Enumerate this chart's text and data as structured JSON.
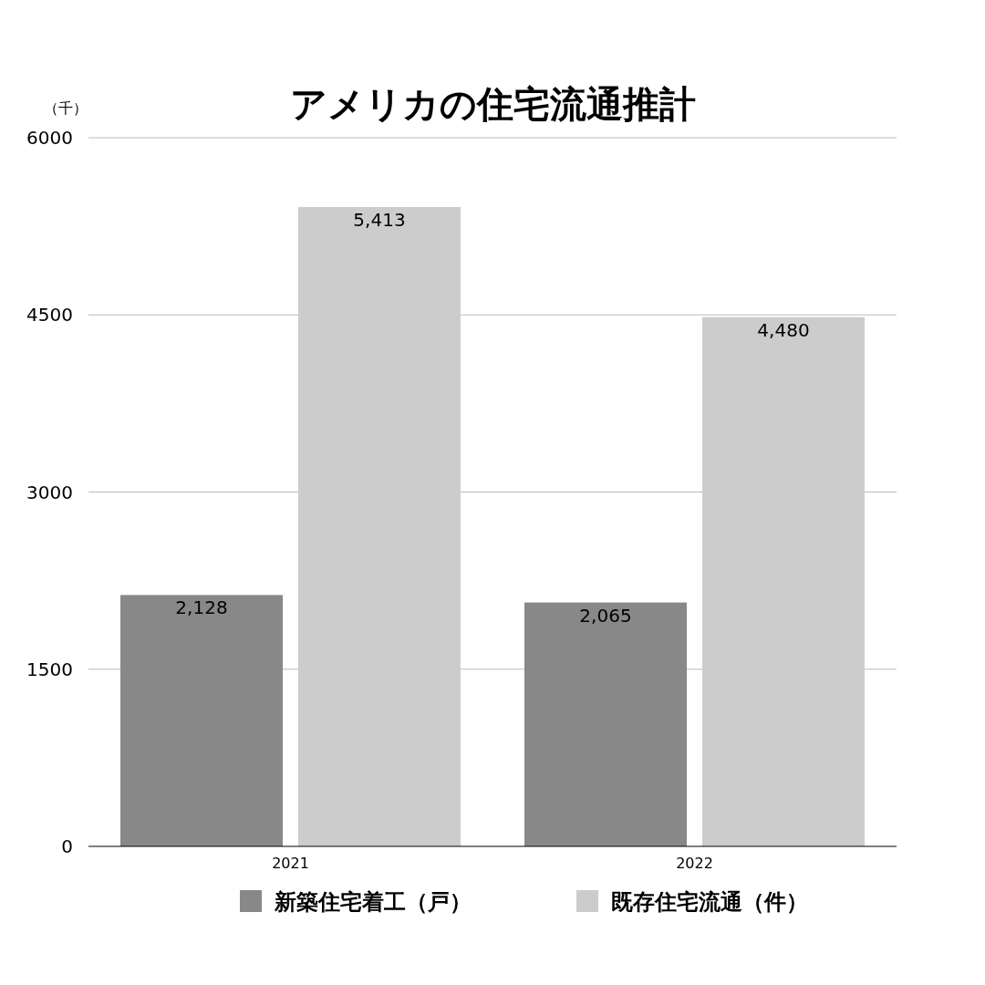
{
  "chart_data": {
    "type": "bar",
    "title": "アメリカの住宅流通推計",
    "ylabel": "（千）",
    "categories": [
      "2021",
      "2022"
    ],
    "series": [
      {
        "name": "新築住宅着工（戸）",
        "color": "#888888",
        "values": [
          2128,
          2065
        ],
        "value_labels": [
          "2,128",
          "2,065"
        ]
      },
      {
        "name": "既存住宅流通（件）",
        "color": "#cccccc",
        "values": [
          5413,
          4480
        ],
        "value_labels": [
          "5,413",
          "4,480"
        ]
      }
    ],
    "ylim": [
      0,
      6000
    ],
    "yticks": [
      0,
      1500,
      3000,
      4500,
      6000
    ],
    "grid": "y",
    "legend": "bottom",
    "data_labels": true
  }
}
